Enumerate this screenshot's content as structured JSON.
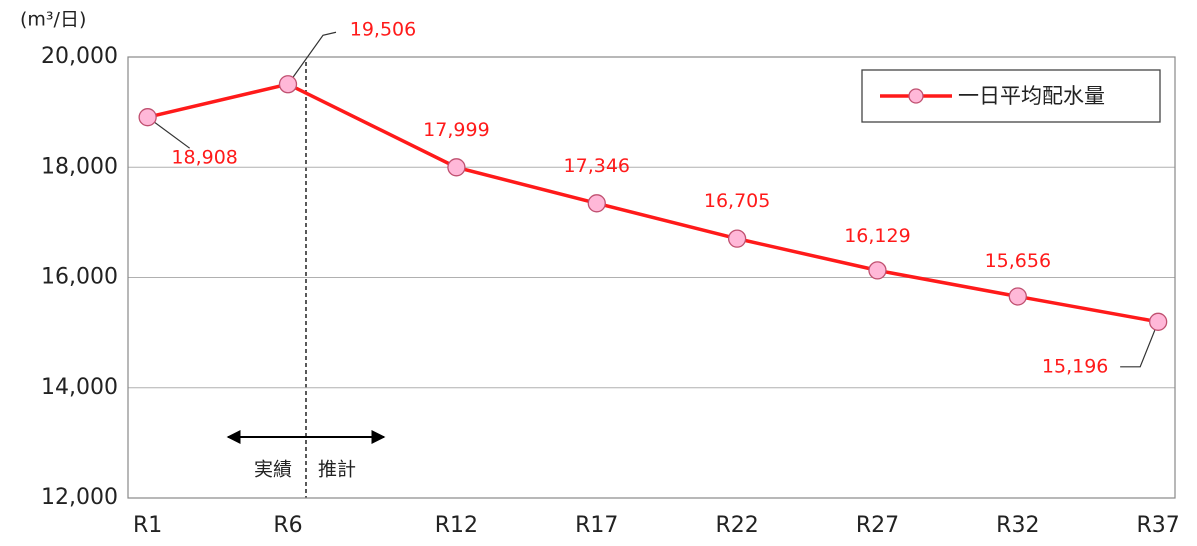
{
  "chart_data": {
    "type": "line",
    "y_unit_label": "(m³/日)",
    "x": [
      1,
      6,
      12,
      17,
      22,
      27,
      32,
      37
    ],
    "xlim": [
      0.3,
      37.6
    ],
    "xticks": [
      {
        "value": 1,
        "label": "R1"
      },
      {
        "value": 6,
        "label": "R6"
      },
      {
        "value": 12,
        "label": "R12"
      },
      {
        "value": 17,
        "label": "R17"
      },
      {
        "value": 22,
        "label": "R22"
      },
      {
        "value": 27,
        "label": "R27"
      },
      {
        "value": 32,
        "label": "R32"
      },
      {
        "value": 37,
        "label": "R37"
      }
    ],
    "ylim": [
      12000,
      20000
    ],
    "yticks": [
      {
        "value": 12000,
        "label": "12,000"
      },
      {
        "value": 14000,
        "label": "14,000"
      },
      {
        "value": 16000,
        "label": "16,000"
      },
      {
        "value": 18000,
        "label": "18,000"
      },
      {
        "value": 20000,
        "label": "20,000"
      }
    ],
    "grid": true,
    "legend": "upper right",
    "series": [
      {
        "name": "一日平均配水量",
        "color": "#ff1a1a",
        "marker_color": "#ffb8d8",
        "values": [
          18908,
          19506,
          17999,
          17346,
          16705,
          16129,
          15656,
          15196
        ],
        "value_labels": [
          "18,908",
          "19,506",
          "17,999",
          "17,346",
          "16,705",
          "16,129",
          "15,656",
          "15,196"
        ]
      }
    ],
    "annotations": [
      "実績",
      "推計"
    ]
  }
}
